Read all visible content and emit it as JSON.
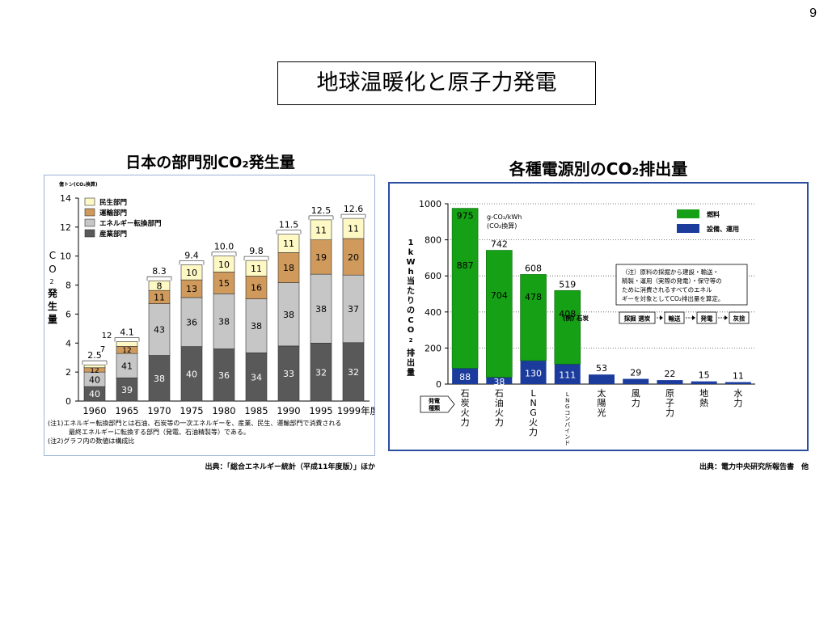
{
  "page_number": "9",
  "slide_title": "地球温暖化と原子力発電",
  "left_source": "出典：「総合エネルギー統計（平成11年度版）」ほか",
  "right_source": "出典：電力中央研究所報告書　他",
  "colors": {
    "residential": "#fdf8c4",
    "transport": "#cf9a5c",
    "conversion": "#c6c6c6",
    "industry": "#595959",
    "fuel": "#15a015",
    "facility": "#1b3c9c"
  },
  "chart_data": [
    {
      "type": "bar",
      "title": "日本の部門別CO₂発生量",
      "unit_label": "億トン(CO₂換算)",
      "ylabel": "CO₂発生量",
      "ylim": [
        0,
        14
      ],
      "yticks": [
        "0",
        "2",
        "4",
        "6",
        "8",
        "10",
        "12",
        "14"
      ],
      "categories": [
        "1960",
        "1965",
        "1970",
        "1975",
        "1980",
        "1985",
        "1990",
        "1995",
        "1999年度"
      ],
      "totals": [
        "2.5",
        "4.1",
        "8.3",
        "9.4",
        "10.0",
        "9.8",
        "11.5",
        "12.5",
        "12.6"
      ],
      "series": [
        {
          "name": "産業部門",
          "values": [
            1.0,
            1.6,
            3.15,
            3.76,
            3.6,
            3.33,
            3.8,
            4.0,
            4.03
          ],
          "labels": [
            "40",
            "39",
            "38",
            "40",
            "36",
            "34",
            "33",
            "32",
            "32"
          ]
        },
        {
          "name": "エネルギー転換部門",
          "values": [
            1.0,
            1.68,
            3.57,
            3.38,
            3.8,
            3.72,
            4.37,
            4.75,
            4.66
          ],
          "labels": [
            "40",
            "41",
            "43",
            "36",
            "38",
            "38",
            "38",
            "38",
            "37"
          ]
        },
        {
          "name": "運輸部門",
          "values": [
            0.3,
            0.49,
            0.91,
            1.22,
            1.5,
            1.57,
            2.07,
            2.37,
            2.52
          ],
          "labels": [
            "12",
            "12",
            "11",
            "13",
            "15",
            "16",
            "18",
            "19",
            "20"
          ]
        },
        {
          "name": "民生部門",
          "values": [
            0.2,
            0.33,
            0.67,
            1.04,
            1.1,
            1.08,
            1.27,
            1.38,
            1.39
          ],
          "labels": [
            "",
            "",
            "8",
            "10",
            "10",
            "11",
            "11",
            "11",
            "11"
          ]
        }
      ],
      "annotations": [
        "12",
        "7",
        "4.1"
      ],
      "notes": [
        "(注1)エネルギー転換部門とは石油、石炭等の一次エネルギーを、産業、民生、運輸部門で消費される",
        "最終エネルギーに転換する部門（発電、石油精製等）である。",
        "(注2)グラフ内の数値は構成比"
      ]
    },
    {
      "type": "bar",
      "title": "各種電源別のCO₂排出量",
      "unit_label": "g-CO₂/kWh",
      "unit_sub": "(CO₂換算)",
      "ylabel": "1kWh当たりのCO₂排出量",
      "ylim": [
        0,
        1000
      ],
      "yticks": [
        "0",
        "200",
        "400",
        "600",
        "800",
        "1000"
      ],
      "xlabel": "発電種類",
      "categories": [
        "石炭火力",
        "石油火力",
        "LNG火力",
        "LNGコンバインド",
        "太陽光",
        "風力",
        "原子力",
        "地熱",
        "水力"
      ],
      "totals": [
        "975",
        "742",
        "608",
        "519",
        "53",
        "29",
        "22",
        "15",
        "11"
      ],
      "series": [
        {
          "name": "燃料",
          "values": [
            887,
            704,
            478,
            408,
            0,
            0,
            0,
            0,
            0
          ],
          "labels": [
            "887",
            "704",
            "478",
            "408",
            "",
            "",
            "",
            "",
            ""
          ]
        },
        {
          "name": "設備、運用",
          "values": [
            88,
            38,
            130,
            111,
            53,
            29,
            22,
            15,
            11
          ],
          "labels": [
            "88",
            "38",
            "130",
            "111",
            "",
            "",
            "",
            "",
            ""
          ]
        }
      ],
      "note": "（注）原料の採掘から建設・輸送・精製・運用（実際の発電）・保守等のために消費されるすべてのエネルギーを対象としてCO₂排出量を算定。",
      "example": {
        "label": "(例) 石炭",
        "steps": [
          "採掘 選炭",
          "輸送",
          "発電",
          "灰捨"
        ]
      }
    }
  ]
}
